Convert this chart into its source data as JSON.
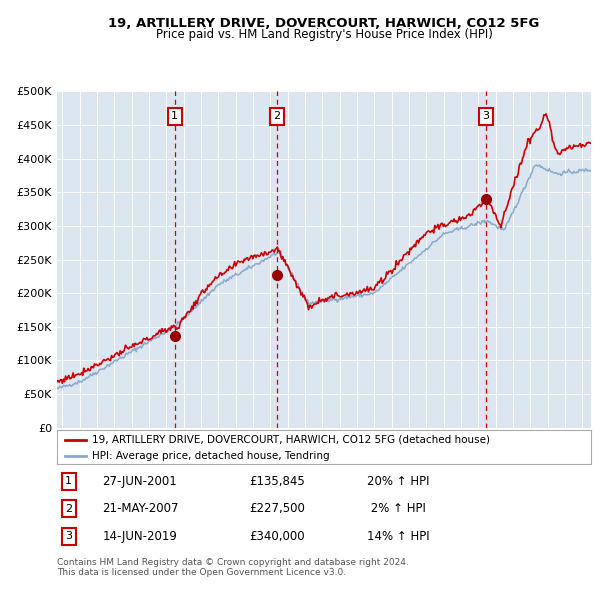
{
  "title": "19, ARTILLERY DRIVE, DOVERCOURT, HARWICH, CO12 5FG",
  "subtitle": "Price paid vs. HM Land Registry's House Price Index (HPI)",
  "legend_property": "19, ARTILLERY DRIVE, DOVERCOURT, HARWICH, CO12 5FG (detached house)",
  "legend_hpi": "HPI: Average price, detached house, Tendring",
  "footer": "Contains HM Land Registry data © Crown copyright and database right 2024.\nThis data is licensed under the Open Government Licence v3.0.",
  "transactions": [
    {
      "num": 1,
      "date": "27-JUN-2001",
      "year": 2001.49,
      "price": 135845,
      "pct": "20%"
    },
    {
      "num": 2,
      "date": "21-MAY-2007",
      "year": 2007.38,
      "price": 227500,
      "pct": "2%"
    },
    {
      "num": 3,
      "date": "14-JUN-2019",
      "year": 2019.45,
      "price": 340000,
      "pct": "14%"
    }
  ],
  "fig_bg": "#ffffff",
  "plot_bg": "#dce6f1",
  "grid_color": "#ffffff",
  "property_line_color": "#cc0000",
  "hpi_line_color": "#88aacc",
  "vline_color": "#cc0000",
  "marker_color": "#990000",
  "box_edge_color": "#cc0000",
  "ylim": [
    0,
    500000
  ],
  "yticks": [
    0,
    50000,
    100000,
    150000,
    200000,
    250000,
    300000,
    350000,
    400000,
    450000,
    500000
  ],
  "xlim_start": 1994.7,
  "xlim_end": 2025.5
}
